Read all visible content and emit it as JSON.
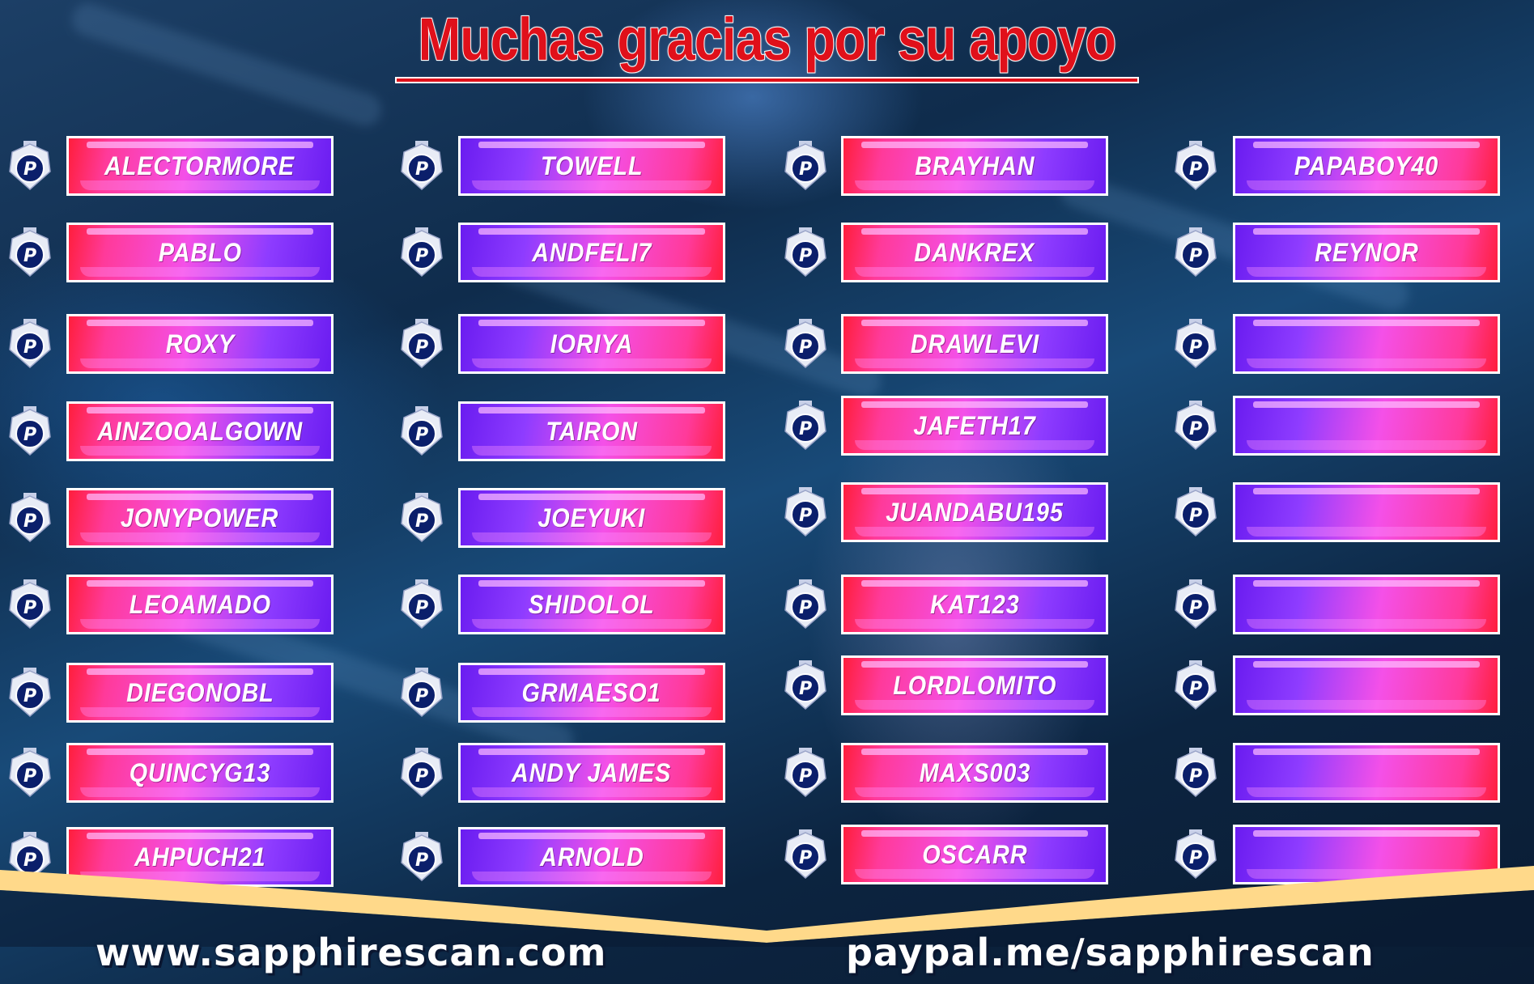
{
  "title": "Muchas gracias por su apoyo",
  "colors": {
    "title_red": "#e0101a",
    "pink": "#ff3a9a",
    "purple": "#6a1cf0",
    "gold": "#ffd98a",
    "paypal_navy": "#0b1f6b"
  },
  "badge_icon": "paypal-icon",
  "columns": [
    {
      "names": [
        "ALECTORMORE",
        "PABLO",
        "ROXY",
        "AINZOOALGOWN",
        "JONYPOWER",
        "LEOAMADO",
        "DIEGONOBL",
        "QUINCYG13",
        "AHPUCH21"
      ]
    },
    {
      "names": [
        "TOWELL",
        "ANDFELI7",
        "IORIYA",
        "TAIRON",
        "JOEYUKI",
        "SHIDOLOL",
        "GRMAESO1",
        "ANDY JAMES",
        "ARNOLD"
      ]
    },
    {
      "names": [
        "BRAYHAN",
        "DANKREX",
        "DRAWLEVI",
        "JAFETH17",
        "JUANDABU195",
        "KAT123",
        "LORDLOMITO",
        "MAXS003",
        "OSCARR"
      ]
    },
    {
      "names": [
        "PAPABOY40",
        "REYNOR",
        "",
        "",
        "",
        "",
        "",
        "",
        ""
      ]
    }
  ],
  "footer": {
    "website": "www.sapphirescan.com",
    "paypal": "paypal.me/sapphirescan"
  }
}
